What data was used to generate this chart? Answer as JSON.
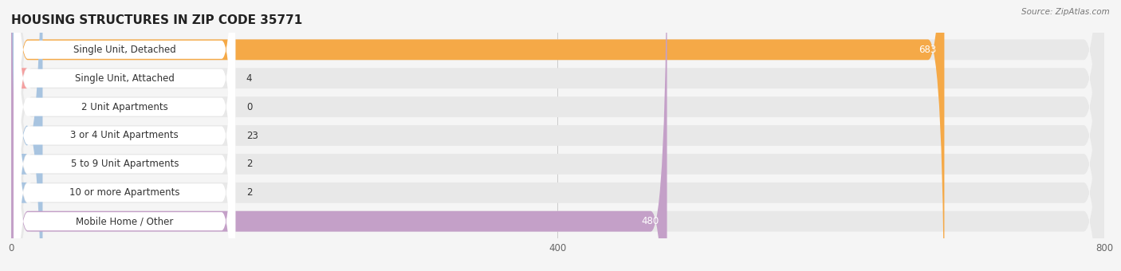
{
  "title": "HOUSING STRUCTURES IN ZIP CODE 35771",
  "source": "Source: ZipAtlas.com",
  "categories": [
    "Single Unit, Detached",
    "Single Unit, Attached",
    "2 Unit Apartments",
    "3 or 4 Unit Apartments",
    "5 to 9 Unit Apartments",
    "10 or more Apartments",
    "Mobile Home / Other"
  ],
  "values": [
    683,
    4,
    0,
    23,
    2,
    2,
    480
  ],
  "bar_colors": [
    "#F5A947",
    "#F4A0A0",
    "#A8C4E0",
    "#A8C4E0",
    "#A8C4E0",
    "#A8C4E0",
    "#C4A0C8"
  ],
  "background_color": "#F5F5F5",
  "bar_bg_color": "#E8E8E8",
  "label_box_color": "#FFFFFF",
  "xlim": [
    0,
    800
  ],
  "xticks": [
    0,
    400,
    800
  ],
  "title_fontsize": 11,
  "label_fontsize": 8.5,
  "value_fontsize": 8.5,
  "bar_height": 0.72,
  "large_value_threshold": 100
}
